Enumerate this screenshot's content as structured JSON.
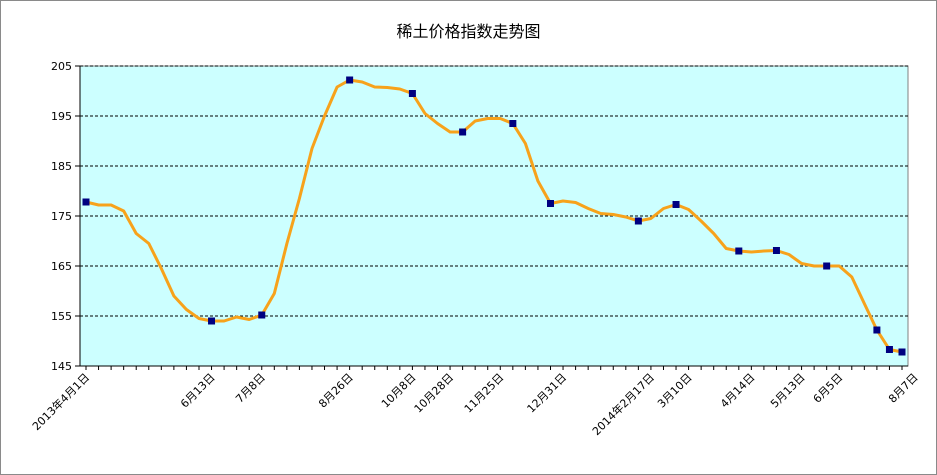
{
  "chart_data": {
    "type": "line",
    "title": "稀土价格指数走势图",
    "xlabel": "",
    "ylabel": "",
    "ylim": [
      145,
      205
    ],
    "yticks": [
      145,
      155,
      165,
      175,
      185,
      195,
      205
    ],
    "grid": "horizontal dashed",
    "legend": "none",
    "colors": {
      "line": "#f7a21b",
      "marker": "#000080",
      "plot_bg": "#ccffff",
      "grid": "#000000"
    },
    "x_labels": [
      "2013年4月1日",
      "6月13日",
      "7月8日",
      "8月26日",
      "10月8日",
      "10月28日",
      "11月25日",
      "12月31日",
      "2014年2月17日",
      "3月10日",
      "4月14日",
      "5月13日",
      "6月5日",
      "8月7日"
    ],
    "x_label_index": [
      0,
      10,
      14,
      21,
      26,
      29,
      33,
      38,
      45,
      48,
      53,
      57,
      60,
      66
    ],
    "series": [
      {
        "values": [
          177.8,
          177.2,
          177.2,
          176.0,
          171.5,
          169.5,
          164.5,
          159.0,
          156.3,
          154.5,
          154.0,
          154.0,
          154.8,
          154.3,
          155.2,
          159.5,
          169.5,
          178.5,
          188.5,
          195.0,
          200.8,
          202.2,
          201.8,
          200.8,
          200.7,
          200.4,
          199.5,
          195.5,
          193.5,
          191.8,
          191.8,
          194.0,
          194.5,
          194.5,
          193.5,
          189.5,
          182.0,
          177.5,
          178.0,
          177.7,
          176.5,
          175.5,
          175.3,
          174.8,
          174.0,
          174.5,
          176.5,
          177.3,
          176.3,
          174.0,
          171.5,
          168.5,
          168.0,
          167.8,
          168.0,
          168.1,
          167.3,
          165.5,
          165.0,
          165.0,
          165.0,
          162.8,
          157.5,
          152.2,
          148.3,
          147.8
        ]
      }
    ],
    "markers": [
      0,
      10,
      14,
      21,
      26,
      30,
      34,
      37,
      44,
      47,
      52,
      55,
      59,
      63,
      64,
      65
    ]
  }
}
